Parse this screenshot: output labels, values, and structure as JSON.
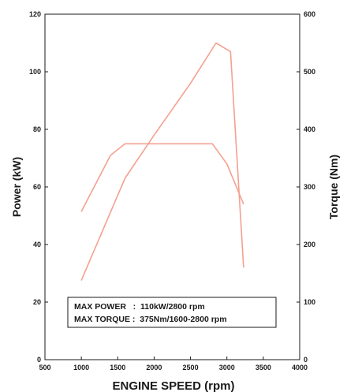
{
  "chart_data": {
    "type": "line",
    "xlabel": "ENGINE SPEED (rpm)",
    "ylabel": "Power (kW)",
    "y2label": "Torque (Nm)",
    "xlim": [
      500,
      4000
    ],
    "ylim": [
      0,
      120
    ],
    "y2lim": [
      0,
      600
    ],
    "xticks": [
      "500",
      "1000",
      "1500",
      "2000",
      "2500",
      "3000",
      "3500",
      "4000"
    ],
    "yticks": [
      "0",
      "20",
      "40",
      "60",
      "80",
      "100",
      "120"
    ],
    "y2ticks": [
      "0",
      "100",
      "200",
      "300",
      "400",
      "500",
      "600"
    ],
    "grid": false,
    "series": [
      {
        "axis": "left",
        "color": "#f4a090",
        "x": [
          1000,
          1600,
          2000,
          2500,
          2850,
          3050,
          3230
        ],
        "y": [
          27.5,
          63.0,
          78.0,
          96.0,
          110.0,
          107.0,
          32.0
        ]
      },
      {
        "axis": "right",
        "color": "#f4a090",
        "x": [
          1000,
          1400,
          1600,
          2000,
          2500,
          2800,
          3000,
          3230
        ],
        "y": [
          257,
          355,
          375,
          375,
          375,
          375,
          340,
          270
        ]
      }
    ],
    "annotation": {
      "lines": [
        "MAX POWER   :  110kW/2800 rpm",
        "MAX TORQUE :  375Nm/1600-2800 rpm"
      ]
    }
  }
}
